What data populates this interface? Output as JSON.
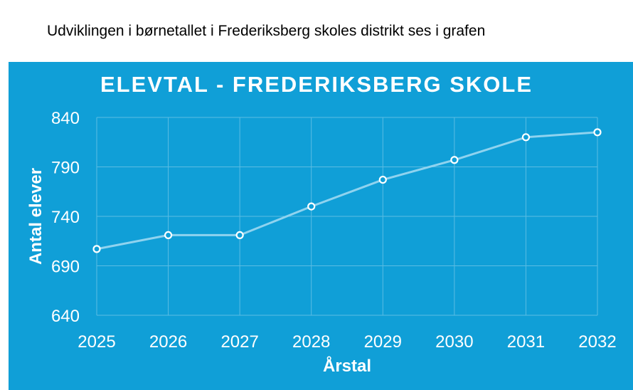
{
  "intro_text": "Udviklingen i børnetallet i Frederiksberg skoles distrikt ses i grafen",
  "chart_data": {
    "type": "line",
    "title": "ELEVTAL - FREDERIKSBERG SKOLE",
    "xlabel": "Årstal",
    "ylabel": "Antal elever",
    "categories": [
      "2025",
      "2026",
      "2027",
      "2028",
      "2029",
      "2030",
      "2031",
      "2032"
    ],
    "values": [
      707,
      721,
      721,
      750,
      777,
      797,
      820,
      825
    ],
    "ylim": [
      640,
      840
    ],
    "yticks": [
      640,
      690,
      740,
      790,
      840
    ],
    "grid": true,
    "colors": {
      "background": "#109fd7",
      "line": "#8fd3ef",
      "grid": "#5bbce3",
      "marker": "#ffffff"
    }
  }
}
